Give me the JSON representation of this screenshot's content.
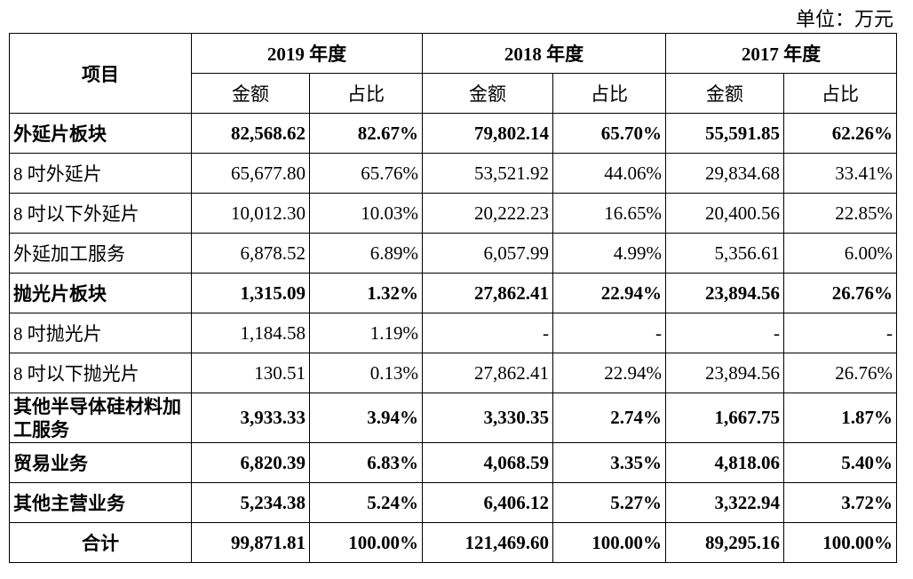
{
  "unit_label": "单位：万元",
  "header": {
    "item": "项目",
    "years": [
      "2019 年度",
      "2018 年度",
      "2017 年度"
    ],
    "amount": "金额",
    "ratio": "占比"
  },
  "rows": [
    {
      "label": "外延片板块",
      "bold": true,
      "cells": [
        "82,568.62",
        "82.67%",
        "79,802.14",
        "65.70%",
        "55,591.85",
        "62.26%"
      ]
    },
    {
      "label": "8 吋外延片",
      "bold": false,
      "cells": [
        "65,677.80",
        "65.76%",
        "53,521.92",
        "44.06%",
        "29,834.68",
        "33.41%"
      ]
    },
    {
      "label": "8 吋以下外延片",
      "bold": false,
      "cells": [
        "10,012.30",
        "10.03%",
        "20,222.23",
        "16.65%",
        "20,400.56",
        "22.85%"
      ]
    },
    {
      "label": "外延加工服务",
      "bold": false,
      "cells": [
        "6,878.52",
        "6.89%",
        "6,057.99",
        "4.99%",
        "5,356.61",
        "6.00%"
      ]
    },
    {
      "label": "抛光片板块",
      "bold": true,
      "cells": [
        "1,315.09",
        "1.32%",
        "27,862.41",
        "22.94%",
        "23,894.56",
        "26.76%"
      ]
    },
    {
      "label": "8 吋抛光片",
      "bold": false,
      "cells": [
        "1,184.58",
        "1.19%",
        "-",
        "-",
        "-",
        "-"
      ]
    },
    {
      "label": "8 吋以下抛光片",
      "bold": false,
      "cells": [
        "130.51",
        "0.13%",
        "27,862.41",
        "22.94%",
        "23,894.56",
        "26.76%"
      ]
    },
    {
      "label": "其他半导体硅材料加工服务",
      "bold": true,
      "cells": [
        "3,933.33",
        "3.94%",
        "3,330.35",
        "2.74%",
        "1,667.75",
        "1.87%"
      ]
    },
    {
      "label": "贸易业务",
      "bold": true,
      "cells": [
        "6,820.39",
        "6.83%",
        "4,068.59",
        "3.35%",
        "4,818.06",
        "5.40%"
      ]
    },
    {
      "label": "其他主营业务",
      "bold": true,
      "cells": [
        "5,234.38",
        "5.24%",
        "6,406.12",
        "5.27%",
        "3,322.94",
        "3.72%"
      ]
    },
    {
      "label": "合计",
      "bold": true,
      "total": true,
      "cells": [
        "99,871.81",
        "100.00%",
        "121,469.60",
        "100.00%",
        "89,295.16",
        "100.00%"
      ]
    }
  ]
}
